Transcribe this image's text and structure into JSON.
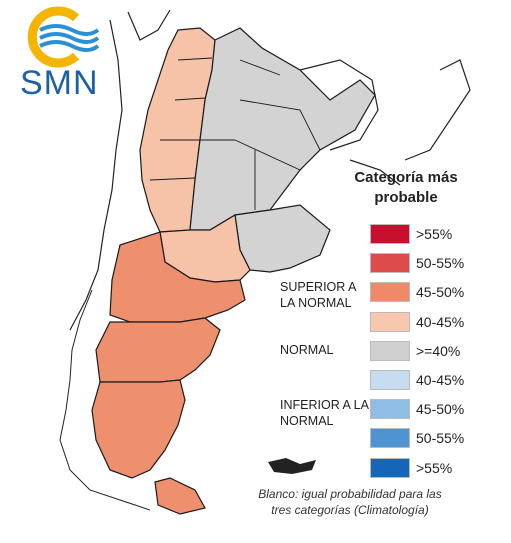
{
  "logo": {
    "text": "SMN",
    "colors": {
      "ring": "#f4b400",
      "waves": "#2b8fd6",
      "text": "#1d5fa8"
    }
  },
  "map": {
    "region": "Argentina",
    "colors": {
      "superior_40_45": "#f6c3a9",
      "superior_45_50": "#ee8f6e",
      "normal": "#d3d3d3",
      "border": "#1a1a1a"
    },
    "bands": [
      {
        "name": "noroeste",
        "category": "superior_40_45"
      },
      {
        "name": "cuyo",
        "category": "superior_40_45"
      },
      {
        "name": "noreste",
        "category": "normal"
      },
      {
        "name": "pampeana",
        "category": "normal"
      },
      {
        "name": "norpatagonia",
        "category": "superior_45_50"
      },
      {
        "name": "patagonia-centro",
        "category": "superior_45_50"
      },
      {
        "name": "patagonia-sur",
        "category": "superior_45_50"
      }
    ]
  },
  "legend": {
    "title": "Categoría más probable",
    "superior_label": "SUPERIOR A LA NORMAL",
    "normal_label": "NORMAL",
    "inferior_label": "INFERIOR A LA NORMAL",
    "items": [
      {
        "label": ">55%",
        "color": "#c8102e"
      },
      {
        "label": "50-55%",
        "color": "#dd4b4b"
      },
      {
        "label": "45-50%",
        "color": "#ef8a68"
      },
      {
        "label": "40-45%",
        "color": "#f7c7ae"
      },
      {
        "label": ">=40%",
        "color": "#d0d0d0"
      },
      {
        "label": "40-45%",
        "color": "#c6dcee"
      },
      {
        "label": "45-50%",
        "color": "#8fbde3"
      },
      {
        "label": "50-55%",
        "color": "#4f93d0"
      },
      {
        "label": ">55%",
        "color": "#1566b6"
      }
    ]
  },
  "note": "Blanco: igual probabilidad para las tres categorías (Climatología)"
}
